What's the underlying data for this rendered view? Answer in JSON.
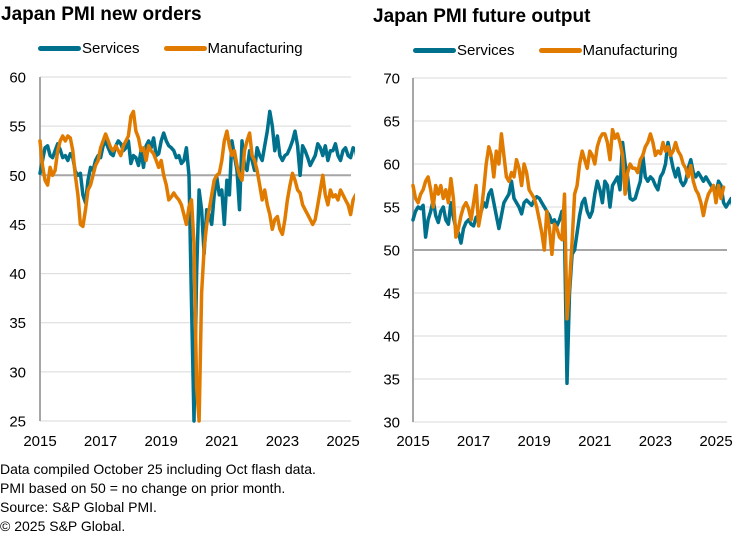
{
  "footnotes": [
    "Data compiled October 25 including Oct flash data.",
    "PMI based on 50 = no change on prior month.",
    "Source: S&P Global PMI.",
    "© 2025 S&P Global."
  ],
  "colors": {
    "services": "#00718c",
    "manufacturing": "#e07b00",
    "grid": "#d9d9d9",
    "axis": "#a6a6a6"
  },
  "chart_data": [
    {
      "type": "line",
      "title": "Japan PMI new orders",
      "xlabel": "",
      "ylabel": "",
      "x_start": "2015-01",
      "x_end": "2025-10",
      "frequency": "monthly",
      "xticks": [
        "2015",
        "2017",
        "2019",
        "2021",
        "2023",
        "2025"
      ],
      "yticks": [
        25,
        30,
        35,
        40,
        45,
        50,
        55,
        60
      ],
      "ylim": [
        25,
        60
      ],
      "reference_line": 50,
      "grid": true,
      "legend": "top",
      "series": [
        {
          "name": "Services",
          "values": [
            50.2,
            51.5,
            52.8,
            53.0,
            52.0,
            51.8,
            52.5,
            53.2,
            52.6,
            51.8,
            52.0,
            51.5,
            52.2,
            51.8,
            50.4,
            50.0,
            50.2,
            48.0,
            47.2,
            49.5,
            50.8,
            50.5,
            51.5,
            52.0,
            51.8,
            53.0,
            53.5,
            52.8,
            52.2,
            52.0,
            53.0,
            53.5,
            53.2,
            52.5,
            52.8,
            53.5,
            51.2,
            52.0,
            51.8,
            51.0,
            52.5,
            50.8,
            53.0,
            53.5,
            52.8,
            53.8,
            52.0,
            52.2,
            53.5,
            54.3,
            53.5,
            53.0,
            52.8,
            52.5,
            51.8,
            52.0,
            51.2,
            51.5,
            52.8,
            50.0,
            37.0,
            25.0,
            40.0,
            48.5,
            46.5,
            42.0,
            46.5,
            46.0,
            45.0,
            48.0,
            49.8,
            48.0,
            48.5,
            45.0,
            49.5,
            48.0,
            53.5,
            52.0,
            50.5,
            46.5,
            53.5,
            51.0,
            50.5,
            52.5,
            51.5,
            50.5,
            52.8,
            52.0,
            51.5,
            53.0,
            54.5,
            56.5,
            55.0,
            52.5,
            54.0,
            52.0,
            51.5,
            52.0,
            52.2,
            52.8,
            53.5,
            54.5,
            53.0,
            50.0,
            53.0,
            52.5,
            51.8,
            51.0,
            51.5,
            52.0,
            53.2,
            52.8,
            52.0,
            53.0,
            51.5,
            52.5,
            52.5,
            53.2,
            52.0,
            51.5,
            52.5,
            52.8,
            52.0,
            51.8,
            52.8,
            52.6,
            51.0,
            50.8,
            51.5,
            51.0
          ]
        },
        {
          "name": "Manufacturing",
          "values": [
            53.5,
            51.0,
            49.5,
            49.0,
            50.8,
            50.0,
            50.5,
            52.5,
            53.5,
            54.0,
            53.5,
            54.0,
            53.8,
            52.5,
            50.0,
            48.0,
            45.0,
            44.8,
            46.5,
            48.5,
            49.0,
            50.0,
            51.0,
            51.5,
            52.8,
            53.5,
            54.2,
            53.5,
            52.8,
            52.5,
            53.0,
            52.5,
            52.0,
            53.0,
            53.5,
            54.0,
            56.0,
            56.5,
            54.5,
            53.8,
            52.5,
            52.8,
            51.5,
            53.0,
            52.5,
            52.2,
            51.5,
            50.8,
            51.5,
            50.0,
            49.0,
            47.5,
            47.8,
            48.2,
            47.8,
            47.5,
            47.0,
            46.0,
            45.0,
            46.8,
            47.5,
            43.0,
            28.5,
            25.0,
            38.0,
            42.5,
            45.0,
            46.5,
            48.0,
            49.5,
            50.0,
            50.2,
            51.5,
            53.5,
            54.5,
            53.0,
            52.0,
            52.5,
            51.0,
            50.0,
            49.5,
            52.5,
            53.5,
            54.3,
            52.0,
            51.5,
            50.5,
            49.0,
            47.5,
            48.5,
            47.0,
            46.0,
            44.5,
            45.5,
            45.8,
            44.5,
            44.0,
            45.5,
            47.5,
            49.0,
            50.2,
            49.5,
            48.5,
            48.2,
            47.0,
            46.5,
            46.0,
            45.5,
            45.0,
            45.5,
            47.0,
            48.5,
            50.0,
            48.0,
            47.0,
            48.5,
            47.8,
            48.0,
            47.5,
            48.5,
            48.0,
            47.5,
            47.0,
            46.0,
            47.5,
            48.0,
            47.5,
            47.8,
            47.5,
            45.2
          ]
        }
      ]
    },
    {
      "type": "line",
      "title": "Japan PMI future output",
      "xlabel": "",
      "ylabel": "",
      "x_start": "2015-01",
      "x_end": "2025-10",
      "frequency": "monthly",
      "xticks": [
        "2015",
        "2017",
        "2019",
        "2021",
        "2023",
        "2025"
      ],
      "yticks": [
        30,
        35,
        40,
        45,
        50,
        55,
        60,
        65,
        70
      ],
      "ylim": [
        30,
        70
      ],
      "reference_line": 50,
      "grid": true,
      "legend": "top",
      "series": [
        {
          "name": "Services",
          "values": [
            53.5,
            54.5,
            55.0,
            54.8,
            55.2,
            51.5,
            53.5,
            54.5,
            55.8,
            54.0,
            53.2,
            54.5,
            55.0,
            53.5,
            53.0,
            55.5,
            53.8,
            52.5,
            52.0,
            50.8,
            52.5,
            53.2,
            53.5,
            53.0,
            52.8,
            53.8,
            54.0,
            54.5,
            55.5,
            55.0,
            56.5,
            57.0,
            55.5,
            54.0,
            52.5,
            54.0,
            55.5,
            56.0,
            56.5,
            58.0,
            56.0,
            55.5,
            55.0,
            54.2,
            55.5,
            55.8,
            55.5,
            55.2,
            55.8,
            56.2,
            56.0,
            55.5,
            55.0,
            54.5,
            54.0,
            53.2,
            53.5,
            52.8,
            53.5,
            54.5,
            52.0,
            34.5,
            45.0,
            49.5,
            50.0,
            52.0,
            54.0,
            55.5,
            56.0,
            54.5,
            53.8,
            54.5,
            56.5,
            58.0,
            57.0,
            55.5,
            58.0,
            57.5,
            55.0,
            57.5,
            58.0,
            58.5,
            57.0,
            62.5,
            60.0,
            58.5,
            56.0,
            55.8,
            56.0,
            57.0,
            58.0,
            61.0,
            58.5,
            58.0,
            58.5,
            58.2,
            57.5,
            57.0,
            58.5,
            59.0,
            60.0,
            62.5,
            61.0,
            59.5,
            58.5,
            59.5,
            58.0,
            57.5,
            58.0,
            59.5,
            60.5,
            59.0,
            58.5,
            59.0,
            58.5,
            58.0,
            58.5,
            58.0,
            57.5,
            57.0,
            56.5,
            58.0,
            57.5,
            55.5,
            55.0,
            55.5,
            56.0,
            54.5,
            55.5,
            55.0
          ]
        },
        {
          "name": "Manufacturing",
          "values": [
            57.5,
            56.0,
            55.5,
            56.5,
            57.0,
            58.0,
            58.5,
            57.0,
            55.0,
            57.5,
            56.5,
            57.5,
            56.0,
            57.0,
            55.5,
            58.3,
            56.0,
            51.5,
            52.5,
            54.0,
            55.0,
            55.5,
            54.8,
            53.5,
            55.5,
            57.5,
            52.8,
            54.5,
            57.0,
            60.0,
            62.0,
            61.0,
            58.5,
            61.5,
            60.0,
            63.5,
            61.0,
            58.5,
            58.0,
            59.0,
            58.5,
            60.5,
            59.5,
            57.5,
            60.0,
            59.0,
            57.0,
            56.5,
            56.0,
            55.0,
            53.5,
            52.0,
            50.0,
            54.5,
            52.5,
            49.5,
            53.0,
            52.5,
            51.5,
            51.2,
            56.5,
            42.0,
            46.0,
            51.0,
            56.5,
            57.5,
            60.0,
            61.5,
            60.5,
            59.5,
            61.5,
            61.0,
            60.0,
            62.0,
            63.0,
            63.5,
            63.5,
            62.5,
            60.5,
            64.0,
            63.0,
            63.5,
            62.5,
            61.0,
            56.5,
            59.0,
            60.0,
            59.5,
            59.5,
            59.0,
            60.5,
            61.0,
            62.0,
            62.5,
            63.5,
            62.5,
            61.0,
            61.5,
            61.2,
            62.5,
            61.5,
            62.0,
            61.0,
            61.5,
            62.5,
            61.5,
            61.0,
            60.0,
            59.5,
            58.5,
            59.8,
            58.0,
            57.0,
            56.5,
            55.5,
            54.0,
            55.5,
            56.5,
            57.0,
            57.5,
            55.5,
            57.5,
            56.0,
            57.3
          ]
        }
      ]
    }
  ]
}
